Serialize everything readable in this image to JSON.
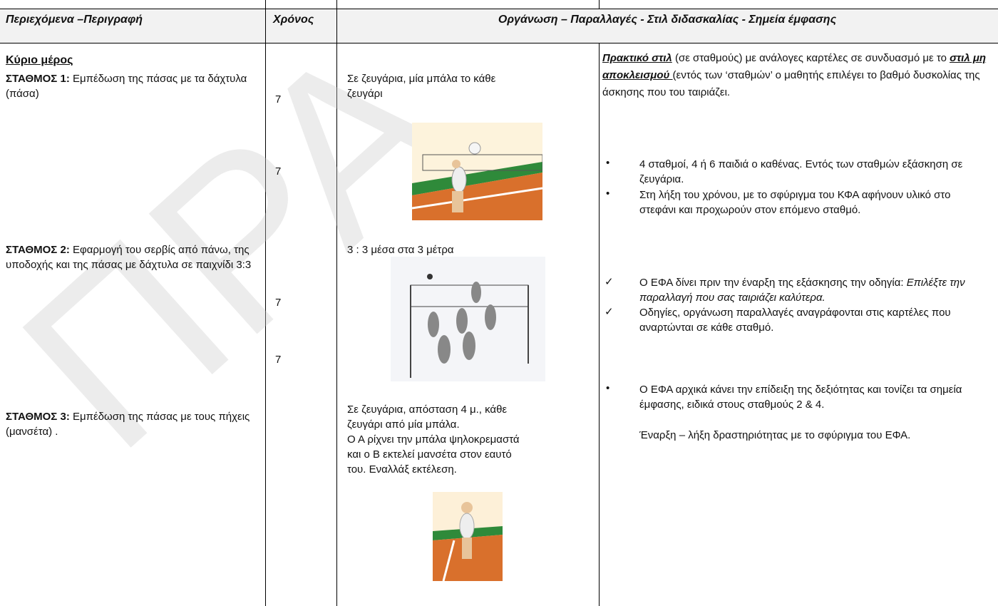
{
  "header": {
    "col1": "Περιεχόμενα –Περιγραφή",
    "col2": "Χρόνος",
    "col3": "Οργάνωση – Παραλλαγές - Στιλ διδασκαλίας - Σημεία έμφασης"
  },
  "watermark": "ΠΡΑ",
  "content": {
    "heading": "Κύριο μέρος",
    "stations": [
      {
        "label": "ΣΤΑΘΜΟΣ 1:",
        "text": " Εμπέδωση της πάσας με τα δάχτυλα (πάσα)"
      },
      {
        "label": "ΣΤΑΘΜΟΣ 2:",
        "text": " Εφαρμογή του σερβίς από πάνω, της υποδοχής και της πάσας με δάχτυλα σε παιχνίδι 3:3"
      },
      {
        "label": "ΣΤΑΘΜΟΣ 3:",
        "text": " Εμπέδωση της πάσας με τους πήχεις (μανσέτα) ."
      }
    ]
  },
  "times": [
    "7",
    "7",
    "7",
    "7"
  ],
  "organization": [
    "Σε ζευγάρια, μία μπάλα το κάθε ζευγάρι",
    "3 : 3  μέσα στα 3 μέτρα",
    "Σε ζευγάρια, απόσταση 4 μ., κάθε ζευγάρι από μία μπάλα.",
    "Ο Α ρίχνει την μπάλα ψηλοκρεμαστά και ο Β εκτελεί μανσέτα στον εαυτό του. Εναλλάξ εκτέλεση."
  ],
  "style": {
    "intro": [
      "Πρακτικό στιλ",
      " (σε σταθμούς) με ανάλογες καρτέλες σε συνδυασμό με το ",
      "στιλ μη αποκλεισμού ",
      "(εντός των ‘σταθμών’ ο μαθητής επιλέγει το βαθμό δυσκολίας της άσκησης που του ταιριάζει."
    ],
    "bullets": [
      "4 σταθμοί, 4 ή 6 παιδιά ο καθένας. Εντός των σταθμών εξάσκηση σε ζευγάρια.",
      "Στη λήξη του χρόνου, με το σφύριγμα του ΚΦΑ αφήνουν υλικό στο στεφάνι και προχωρούν στον επόμενο σταθμό."
    ],
    "checks": [
      [
        "Ο ΕΦΑ δίνει πριν την έναρξη της εξάσκησης την οδηγία: ",
        "Επιλέξτε την παραλλαγή που σας ταιριάζει καλύτερα."
      ],
      [
        "Οδηγίες, οργάνωση παραλλαγές αναγράφονται στις καρτέλες που αναρτώνται σε κάθε σταθμό."
      ]
    ],
    "final_bullet": "Ο ΕΦΑ αρχικά κάνει την επίδειξη της δεξιότητας και τονίζει τα σημεία έμφασης, ειδικά στους σταθμούς 2 & 4.",
    "final_note": " Έναρξη – λήξη δραστηριότητας με το σφύριγμα του ΕΦΑ."
  }
}
